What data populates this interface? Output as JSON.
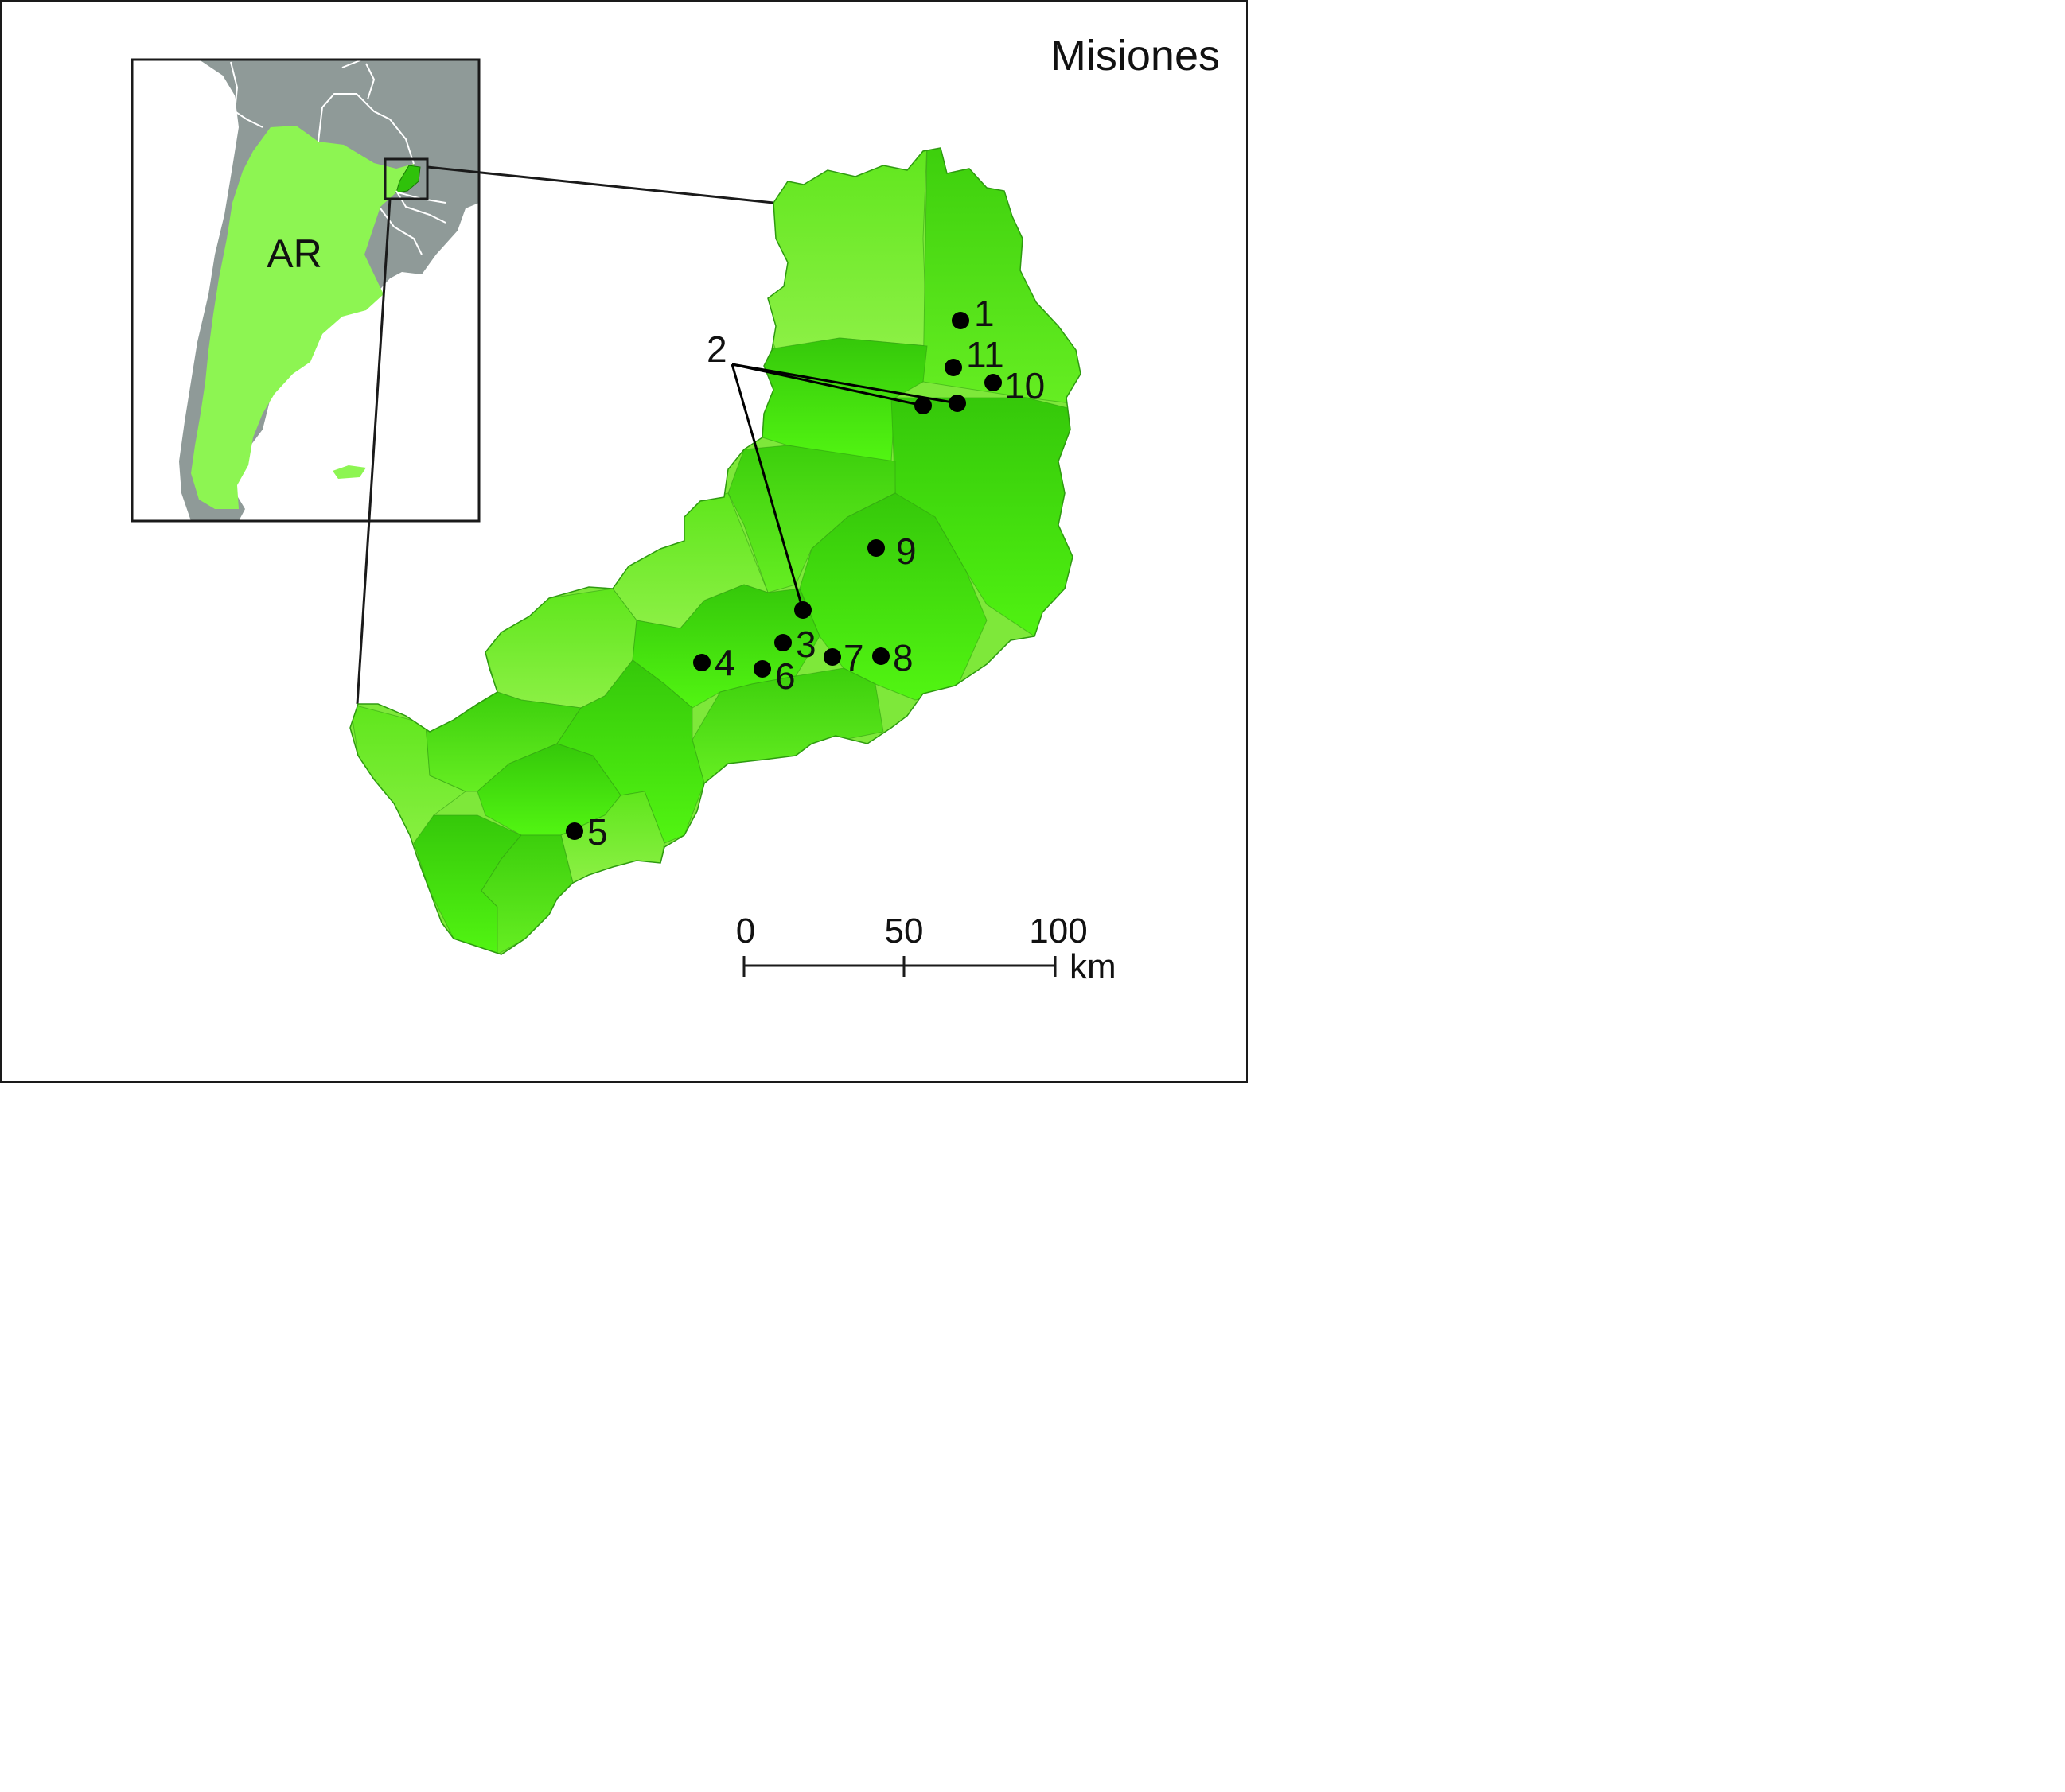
{
  "title": "Misiones",
  "inset": {
    "country_label": "AR"
  },
  "sites": [
    {
      "label": "1"
    },
    {
      "label": "2"
    },
    {
      "label": "3"
    },
    {
      "label": "4"
    },
    {
      "label": "5"
    },
    {
      "label": "6"
    },
    {
      "label": "7"
    },
    {
      "label": "8"
    },
    {
      "label": "9"
    },
    {
      "label": "10"
    },
    {
      "label": "11"
    }
  ],
  "scale_bar": {
    "ticks": [
      "0",
      "50",
      "100"
    ],
    "unit": "km"
  },
  "colors": {
    "province_light": "#86ec3c",
    "province_mid": "#5ee818",
    "province_dark": "#3fd60a",
    "inset_land_grey": "#8f9a98",
    "inset_argentina": "#8df552",
    "dot": "#000000"
  }
}
